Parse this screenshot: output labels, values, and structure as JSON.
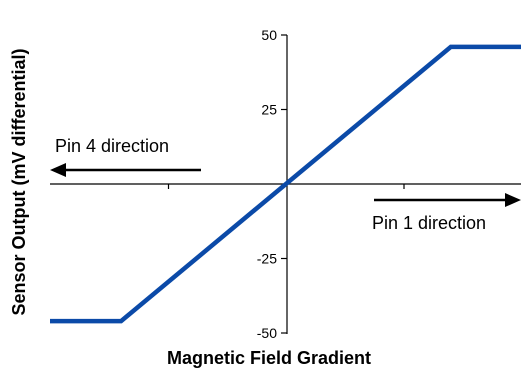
{
  "chart_data": {
    "type": "line",
    "xlabel": "Magnetic Field Gradient",
    "ylabel": "Sensor Output (mV differential)",
    "ylim": [
      -50,
      50
    ],
    "xlim": [
      -4,
      4
    ],
    "yticks": [
      50,
      25,
      -25,
      -50
    ],
    "ytick_labels": [
      "50",
      "25",
      "-25",
      "-50"
    ],
    "xticks": [
      -2,
      2
    ],
    "series": [
      {
        "x": [
          -4,
          -2.8,
          2.8,
          4
        ],
        "y": [
          -46,
          -46,
          46,
          46
        ],
        "color": "#0b4aa8"
      }
    ],
    "annotations": [
      {
        "text": "Pin 4 direction",
        "direction": "left"
      },
      {
        "text": "Pin 1 direction",
        "direction": "right"
      }
    ],
    "grid": false
  }
}
